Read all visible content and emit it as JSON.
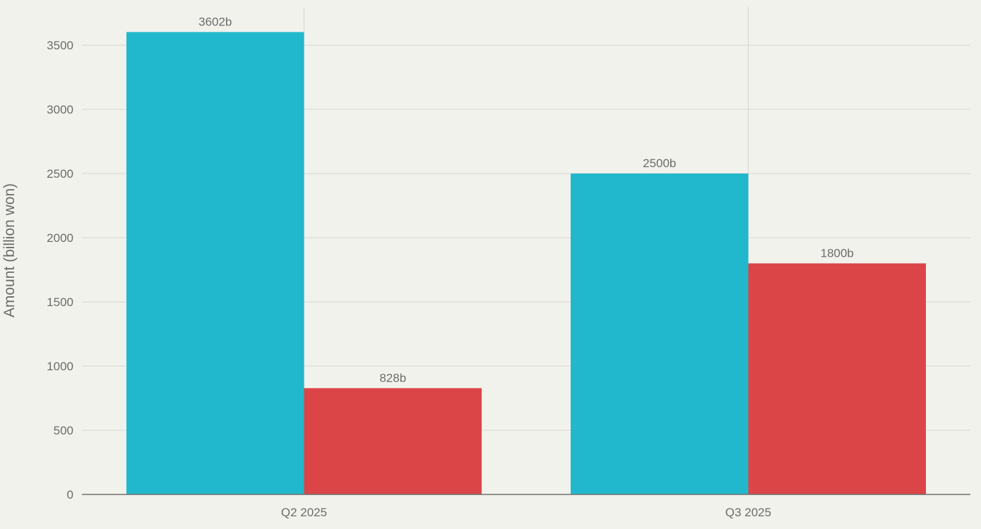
{
  "chart_data": {
    "type": "bar",
    "title": "",
    "xlabel": "",
    "ylabel": "Amount (billion won)",
    "categories": [
      "Q2 2025",
      "Q3 2025"
    ],
    "series": [
      {
        "color": "#21b8cd",
        "values": [
          3602,
          2500
        ],
        "labels": [
          "3602b",
          "2500b"
        ]
      },
      {
        "color": "#db4547",
        "values": [
          828,
          1800
        ],
        "labels": [
          "828b",
          "1800b"
        ]
      }
    ],
    "ylim": [
      0,
      3800
    ],
    "yticks": [
      0,
      500,
      1000,
      1500,
      2000,
      2500,
      3000,
      3500
    ],
    "ytick_labels": [
      "0",
      "500",
      "1000",
      "1500",
      "2000",
      "2500",
      "3000",
      "3500"
    ],
    "grid": true,
    "legend": "none"
  }
}
